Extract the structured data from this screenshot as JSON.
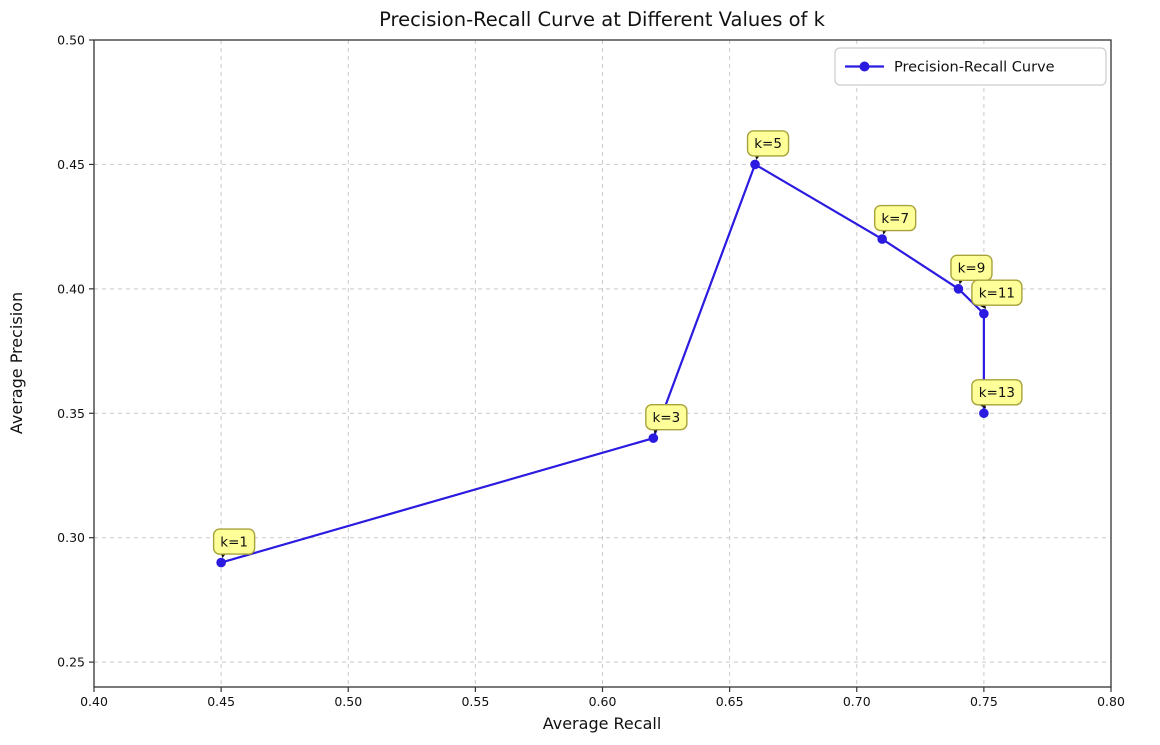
{
  "chart_data": {
    "type": "line",
    "title": "Precision-Recall Curve at Different Values of k",
    "xlabel": "Average Recall",
    "ylabel": "Average Precision",
    "legend": [
      "Precision-Recall Curve"
    ],
    "legend_position": "upper right",
    "grid": true,
    "grid_style": "dashed",
    "xlim": [
      0.4,
      0.8
    ],
    "ylim": [
      0.24,
      0.5
    ],
    "xticks": [
      "0.40",
      "0.45",
      "0.50",
      "0.55",
      "0.60",
      "0.65",
      "0.70",
      "0.75",
      "0.80"
    ],
    "yticks": [
      "0.25",
      "0.30",
      "0.35",
      "0.40",
      "0.45",
      "0.50"
    ],
    "series": [
      {
        "name": "Precision-Recall Curve",
        "marker": "circle",
        "points": [
          {
            "k": 1,
            "recall": 0.45,
            "precision": 0.29,
            "label": "k=1"
          },
          {
            "k": 3,
            "recall": 0.62,
            "precision": 0.34,
            "label": "k=3"
          },
          {
            "k": 5,
            "recall": 0.66,
            "precision": 0.45,
            "label": "k=5"
          },
          {
            "k": 7,
            "recall": 0.71,
            "precision": 0.42,
            "label": "k=7"
          },
          {
            "k": 9,
            "recall": 0.74,
            "precision": 0.4,
            "label": "k=9"
          },
          {
            "k": 11,
            "recall": 0.75,
            "precision": 0.39,
            "label": "k=11"
          },
          {
            "k": 13,
            "recall": 0.75,
            "precision": 0.35,
            "label": "k=13"
          }
        ]
      }
    ],
    "colors": {
      "line": "#2b1be0",
      "marker": "#2b1be0",
      "annotation_fill": "#ffff99",
      "annotation_border": "#a8a23a",
      "grid": "#c9c9c9",
      "spine": "#333333",
      "legend_border": "#cccccc",
      "arrow": "#111111"
    }
  }
}
